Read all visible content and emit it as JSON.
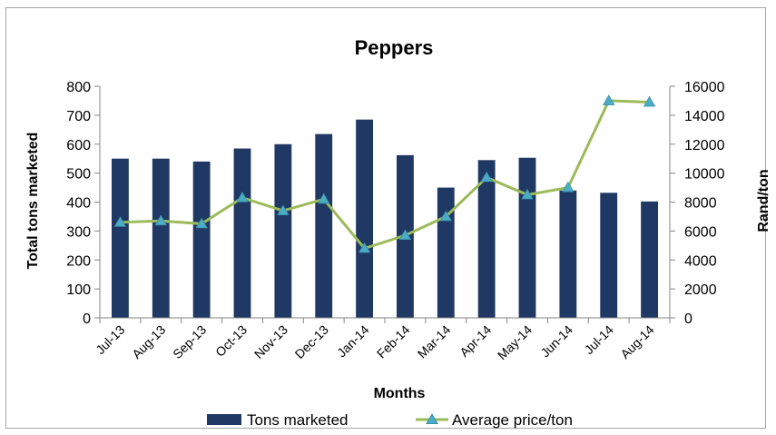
{
  "chart_data": {
    "type": "bar",
    "title": "Peppers",
    "xlabel": "Months",
    "ylabel": "Total  tons marketed",
    "y2label": "Rand/ton",
    "categories": [
      "Jul-13",
      "Aug-13",
      "Sep-13",
      "Oct-13",
      "Nov-13",
      "Dec-13",
      "Jan-14",
      "Feb-14",
      "Mar-14",
      "Apr-14",
      "May-14",
      "Jun-14",
      "Jul-14",
      "Aug-14"
    ],
    "ylim": [
      0,
      800
    ],
    "y_ticks": [
      "0",
      "100",
      "200",
      "300",
      "400",
      "500",
      "600",
      "700",
      "800"
    ],
    "y2lim": [
      0,
      16000
    ],
    "y2_ticks": [
      "0",
      "2000",
      "4000",
      "6000",
      "8000",
      "10000",
      "12000",
      "14000",
      "16000"
    ],
    "grid": false,
    "legend_position": "bottom",
    "series": [
      {
        "name": "Tons marketed",
        "type": "bar",
        "axis": "left",
        "color": "#1f3864",
        "values": [
          550,
          550,
          540,
          585,
          600,
          635,
          685,
          562,
          450,
          545,
          553,
          440,
          432,
          402
        ]
      },
      {
        "name": "Average price/ton",
        "type": "line",
        "axis": "right",
        "color": "#9bbb59",
        "marker_color": "#4bacc6",
        "values": [
          6600,
          6700,
          6500,
          8300,
          7400,
          8200,
          4800,
          5700,
          7000,
          9700,
          8500,
          9000,
          15000,
          14900
        ]
      }
    ]
  }
}
